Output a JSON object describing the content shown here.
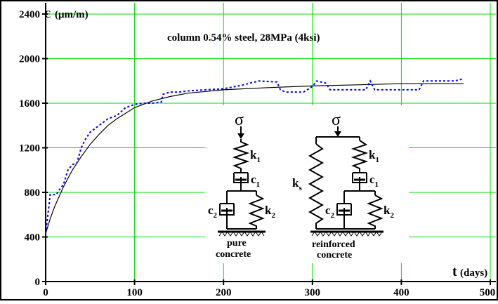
{
  "chart_data": {
    "type": "line",
    "title": "column 0.54% steel, 28MPa (4ksi)",
    "xlabel": "t",
    "xlabel_unit": "(days)",
    "ylabel": "ε",
    "ylabel_unit": "(μm/m)",
    "xlim": [
      0,
      500
    ],
    "ylim": [
      0,
      2400
    ],
    "xticks": [
      0,
      100,
      200,
      300,
      400,
      500
    ],
    "yticks": [
      0,
      400,
      800,
      1200,
      1600,
      2000,
      2400
    ],
    "xtick_labels": [
      "0",
      "100",
      "200",
      "300",
      "400",
      "500"
    ],
    "ytick_labels": [
      "0",
      "400",
      "800",
      "1200",
      "1600",
      "2000",
      "2400"
    ],
    "grid": true,
    "series": [
      {
        "style": "solid",
        "color": "#000000",
        "x": [
          0,
          5,
          10,
          20,
          30,
          40,
          50,
          60,
          70,
          80,
          90,
          100,
          120,
          140,
          160,
          180,
          200,
          250,
          300,
          350,
          400,
          470
        ],
        "y": [
          430,
          560,
          670,
          850,
          1000,
          1120,
          1230,
          1320,
          1400,
          1460,
          1510,
          1560,
          1620,
          1660,
          1690,
          1705,
          1720,
          1740,
          1755,
          1765,
          1775,
          1775
        ]
      },
      {
        "style": "dotted",
        "color": "#0000ff",
        "x": [
          0,
          4,
          5,
          12,
          15,
          20,
          25,
          30,
          35,
          40,
          45,
          50,
          60,
          70,
          80,
          90,
          100,
          110,
          120,
          130,
          132,
          140,
          150,
          160,
          180,
          200,
          220,
          240,
          260,
          264,
          270,
          290,
          300,
          305,
          315,
          320,
          330,
          350,
          360,
          365,
          370,
          400,
          420,
          425,
          440,
          460,
          470
        ],
        "y": [
          430,
          700,
          780,
          780,
          820,
          870,
          1000,
          1050,
          1060,
          1200,
          1280,
          1340,
          1400,
          1460,
          1490,
          1560,
          1590,
          1600,
          1600,
          1610,
          1680,
          1700,
          1700,
          1710,
          1720,
          1730,
          1760,
          1800,
          1790,
          1720,
          1700,
          1700,
          1750,
          1800,
          1780,
          1720,
          1720,
          1720,
          1720,
          1800,
          1720,
          1720,
          1720,
          1800,
          1800,
          1800,
          1820
        ]
      }
    ],
    "inset": {
      "sigma": "σ",
      "k1": "k",
      "k1_sub": "1",
      "c1": "c",
      "c1_sub": "1",
      "c2": "c",
      "c2_sub": "2",
      "k2": "k",
      "k2_sub": "2",
      "ks": "k",
      "ks_sub": "s",
      "left_caption_1": "pure",
      "left_caption_2": "concrete",
      "right_caption_1": "reinforced",
      "right_caption_2": "concrete"
    },
    "colors": {
      "grid": "#00dd00",
      "frame": "#000000",
      "fit": "#000000",
      "measured": "#0000ff"
    }
  }
}
